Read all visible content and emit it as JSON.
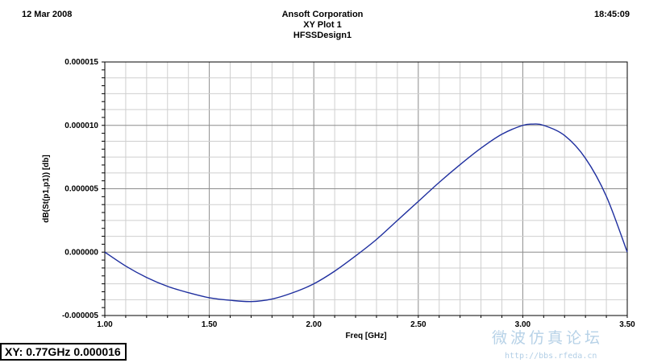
{
  "header": {
    "date": "12 Mar 2008",
    "time": "18:45:09",
    "company": "Ansoft Corporation",
    "plot_title": "XY Plot 1",
    "design": "HFSSDesign1"
  },
  "chart_data": {
    "type": "line",
    "title": "XY Plot 1",
    "xlabel": "Freq [GHz]",
    "ylabel": "dB(St(p1,p1)) [db]",
    "xlim": [
      1.0,
      3.5
    ],
    "ylim": [
      -5e-06,
      1.5e-05
    ],
    "x_ticks": [
      "1.00",
      "1.50",
      "2.00",
      "2.50",
      "3.00",
      "3.50"
    ],
    "y_ticks": [
      "-0.000005",
      "0.000000",
      "0.000005",
      "0.000010",
      "0.000015"
    ],
    "grid": true,
    "line_color": "#1f2f9f",
    "series": [
      {
        "x": [
          1.0,
          1.1,
          1.2,
          1.3,
          1.4,
          1.5,
          1.6,
          1.7,
          1.8,
          1.9,
          2.0,
          2.1,
          2.2,
          2.3,
          2.4,
          2.5,
          2.6,
          2.7,
          2.8,
          2.9,
          3.0,
          3.05,
          3.1,
          3.2,
          3.3,
          3.4,
          3.5
        ],
        "values": [
          0.0,
          -1.1e-06,
          -2e-06,
          -2.7e-06,
          -3.2e-06,
          -3.6e-06,
          -3.8e-06,
          -3.9e-06,
          -3.7e-06,
          -3.2e-06,
          -2.5e-06,
          -1.5e-06,
          -3e-07,
          1e-06,
          2.5e-06,
          4e-06,
          5.5e-06,
          6.9e-06,
          8.2e-06,
          9.3e-06,
          1e-05,
          1.01e-05,
          1e-05,
          9.2e-06,
          7.4e-06,
          4.4e-06,
          0.0
        ]
      }
    ]
  },
  "readout": {
    "text": "XY: 0.77GHz 0.000016"
  },
  "watermark": {
    "text": "微波仿真论坛",
    "url": "http://bbs.rfeda.cn"
  }
}
